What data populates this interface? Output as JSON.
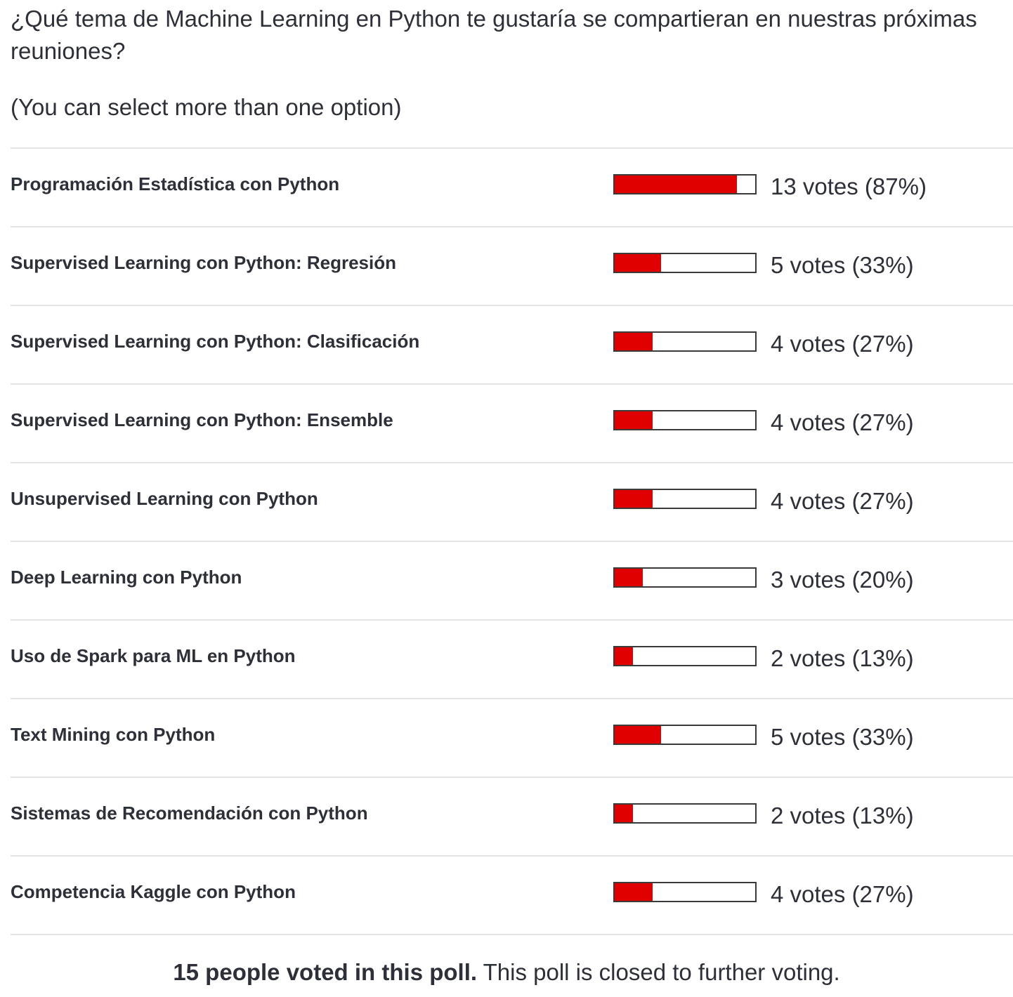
{
  "poll": {
    "question": "¿Qué tema de Machine Learning en Python te gustaría se compartieran en nuestras próximas reuniones?",
    "note": "(You can select more than one option)",
    "options": [
      {
        "label": "Programación Estadística con Python",
        "votes_text": "13 votes (87%)",
        "fraction": 0.87
      },
      {
        "label": "Supervised Learning con Python: Regresión",
        "votes_text": "5 votes (33%)",
        "fraction": 0.33
      },
      {
        "label": "Supervised Learning con Python: Clasificación",
        "votes_text": "4 votes (27%)",
        "fraction": 0.27
      },
      {
        "label": "Supervised Learning con Python: Ensemble",
        "votes_text": "4 votes (27%)",
        "fraction": 0.27
      },
      {
        "label": "Unsupervised Learning con Python",
        "votes_text": "4 votes (27%)",
        "fraction": 0.27
      },
      {
        "label": "Deep Learning con Python",
        "votes_text": "3 votes (20%)",
        "fraction": 0.2
      },
      {
        "label": "Uso de Spark para ML en Python",
        "votes_text": "2 votes (13%)",
        "fraction": 0.13
      },
      {
        "label": "Text Mining con Python",
        "votes_text": "5 votes (33%)",
        "fraction": 0.33
      },
      {
        "label": "Sistemas de Recomendación con Python",
        "votes_text": "2 votes (13%)",
        "fraction": 0.13
      },
      {
        "label": "Competencia Kaggle con Python",
        "votes_text": "4 votes (27%)",
        "fraction": 0.27
      }
    ],
    "footer_bold": "15 people voted in this poll.",
    "footer_rest": " This poll is closed to further voting."
  },
  "colors": {
    "bar_fill": "#e00000",
    "bar_border": "#3a3a3a",
    "divider": "#e4e4e6",
    "text": "#2e3039"
  }
}
